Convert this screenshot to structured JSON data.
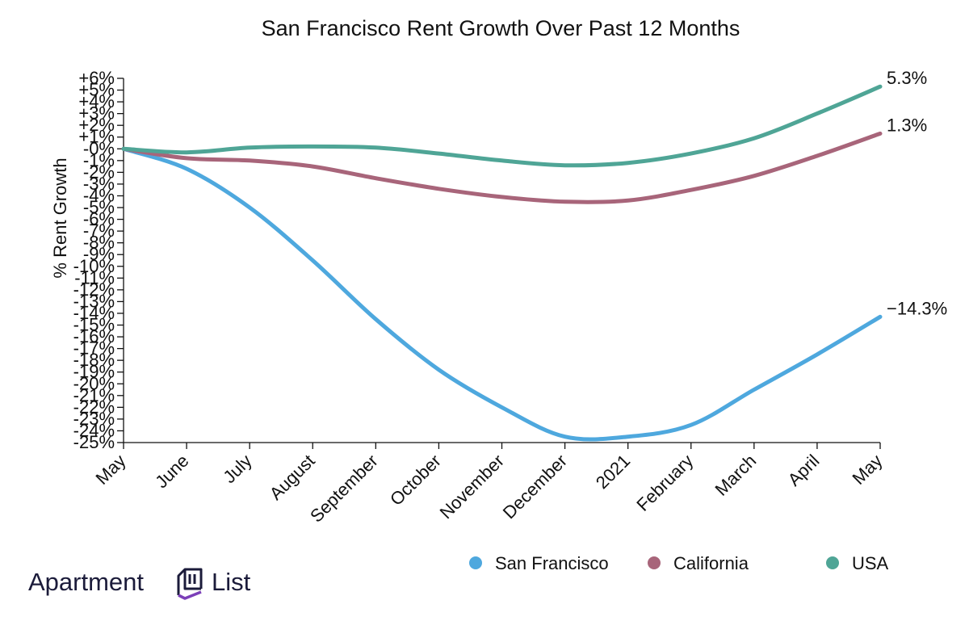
{
  "chart_data": {
    "type": "line",
    "title": "San Francisco Rent Growth Over Past 12 Months",
    "xlabel": "",
    "ylabel": "% Rent Growth",
    "categories": [
      "May",
      "June",
      "July",
      "August",
      "September",
      "October",
      "November",
      "December",
      "2021",
      "February",
      "March",
      "April",
      "May"
    ],
    "y_ticks": [
      "+6%",
      "+5%",
      "+4%",
      "+3%",
      "+2%",
      "+1%",
      "-0%",
      "-1%",
      "-2%",
      "-3%",
      "-4%",
      "-5%",
      "-6%",
      "-7%",
      "-8%",
      "-9%",
      "-10%",
      "-11%",
      "-12%",
      "-13%",
      "-14%",
      "-15%",
      "-16%",
      "-17%",
      "-18%",
      "-19%",
      "-20%",
      "-21%",
      "-22%",
      "-23%",
      "-24%",
      "-25%"
    ],
    "ylim": [
      -25,
      6
    ],
    "grid": false,
    "legend_position": "bottom",
    "series": [
      {
        "name": "San Francisco",
        "color": "#4ea8de",
        "values": [
          0,
          -1.7,
          -5.0,
          -9.5,
          -14.5,
          -18.8,
          -22.0,
          -24.5,
          -24.5,
          -23.5,
          -20.5,
          -17.5,
          -14.3
        ],
        "end_label": "−14.3%"
      },
      {
        "name": "California",
        "color": "#a8657a",
        "values": [
          0,
          -0.8,
          -1.0,
          -1.5,
          -2.5,
          -3.4,
          -4.1,
          -4.5,
          -4.4,
          -3.5,
          -2.3,
          -0.6,
          1.3
        ],
        "end_label": "1.3%"
      },
      {
        "name": "USA",
        "color": "#4fa596",
        "values": [
          0,
          -0.3,
          0.1,
          0.2,
          0.1,
          -0.4,
          -1.0,
          -1.4,
          -1.2,
          -0.4,
          0.9,
          3.0,
          5.3
        ],
        "end_label": "5.3%"
      }
    ]
  },
  "brand": {
    "name_left": "Apartment",
    "name_right": "List",
    "logo_icon": "apartment-list-logo-icon",
    "logo_color": "#7b3fb8"
  }
}
